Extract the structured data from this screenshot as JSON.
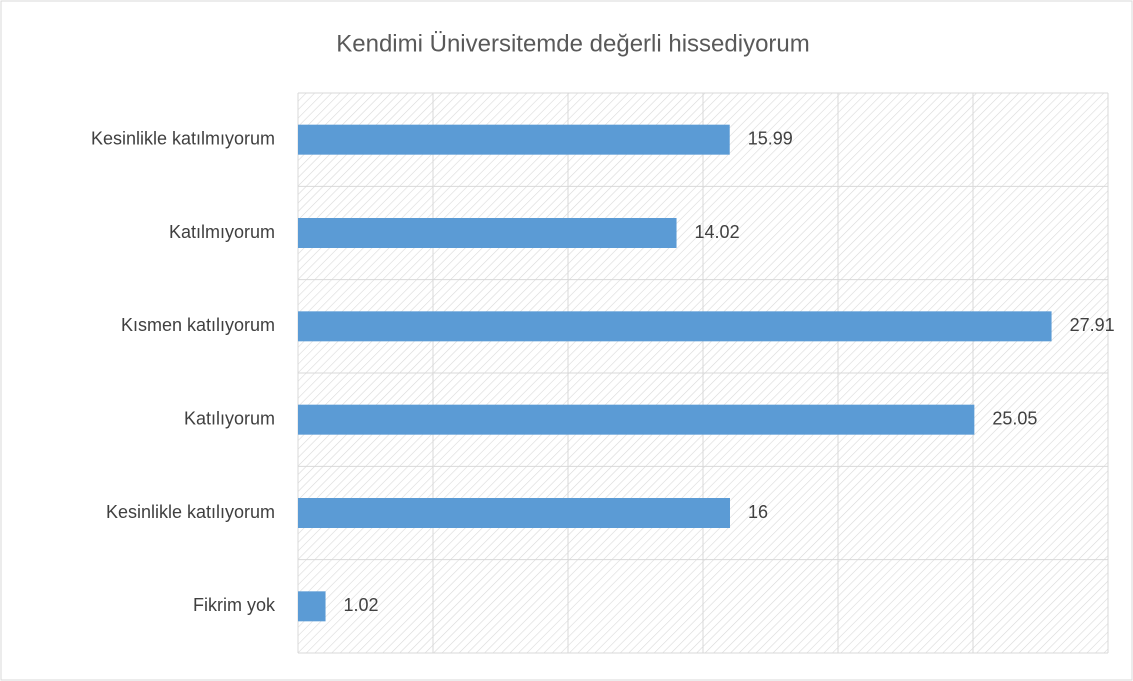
{
  "chart_data": {
    "type": "barh",
    "title": "Kendimi Üniversitemde değerli hissediyorum",
    "categories": [
      "Kesinlikle katılmıyorum",
      "Katılmıyorum",
      "Kısmen katılıyorum",
      "Katılıyorum",
      "Kesinlikle katılıyorum",
      "Fikrim yok"
    ],
    "values": [
      15.99,
      14.02,
      27.91,
      25.05,
      16,
      1.02
    ],
    "color": "#5b9bd5",
    "xlim": [
      0,
      30
    ],
    "xticks": [
      0,
      5,
      10,
      15,
      20,
      25,
      30
    ],
    "grid": true
  }
}
